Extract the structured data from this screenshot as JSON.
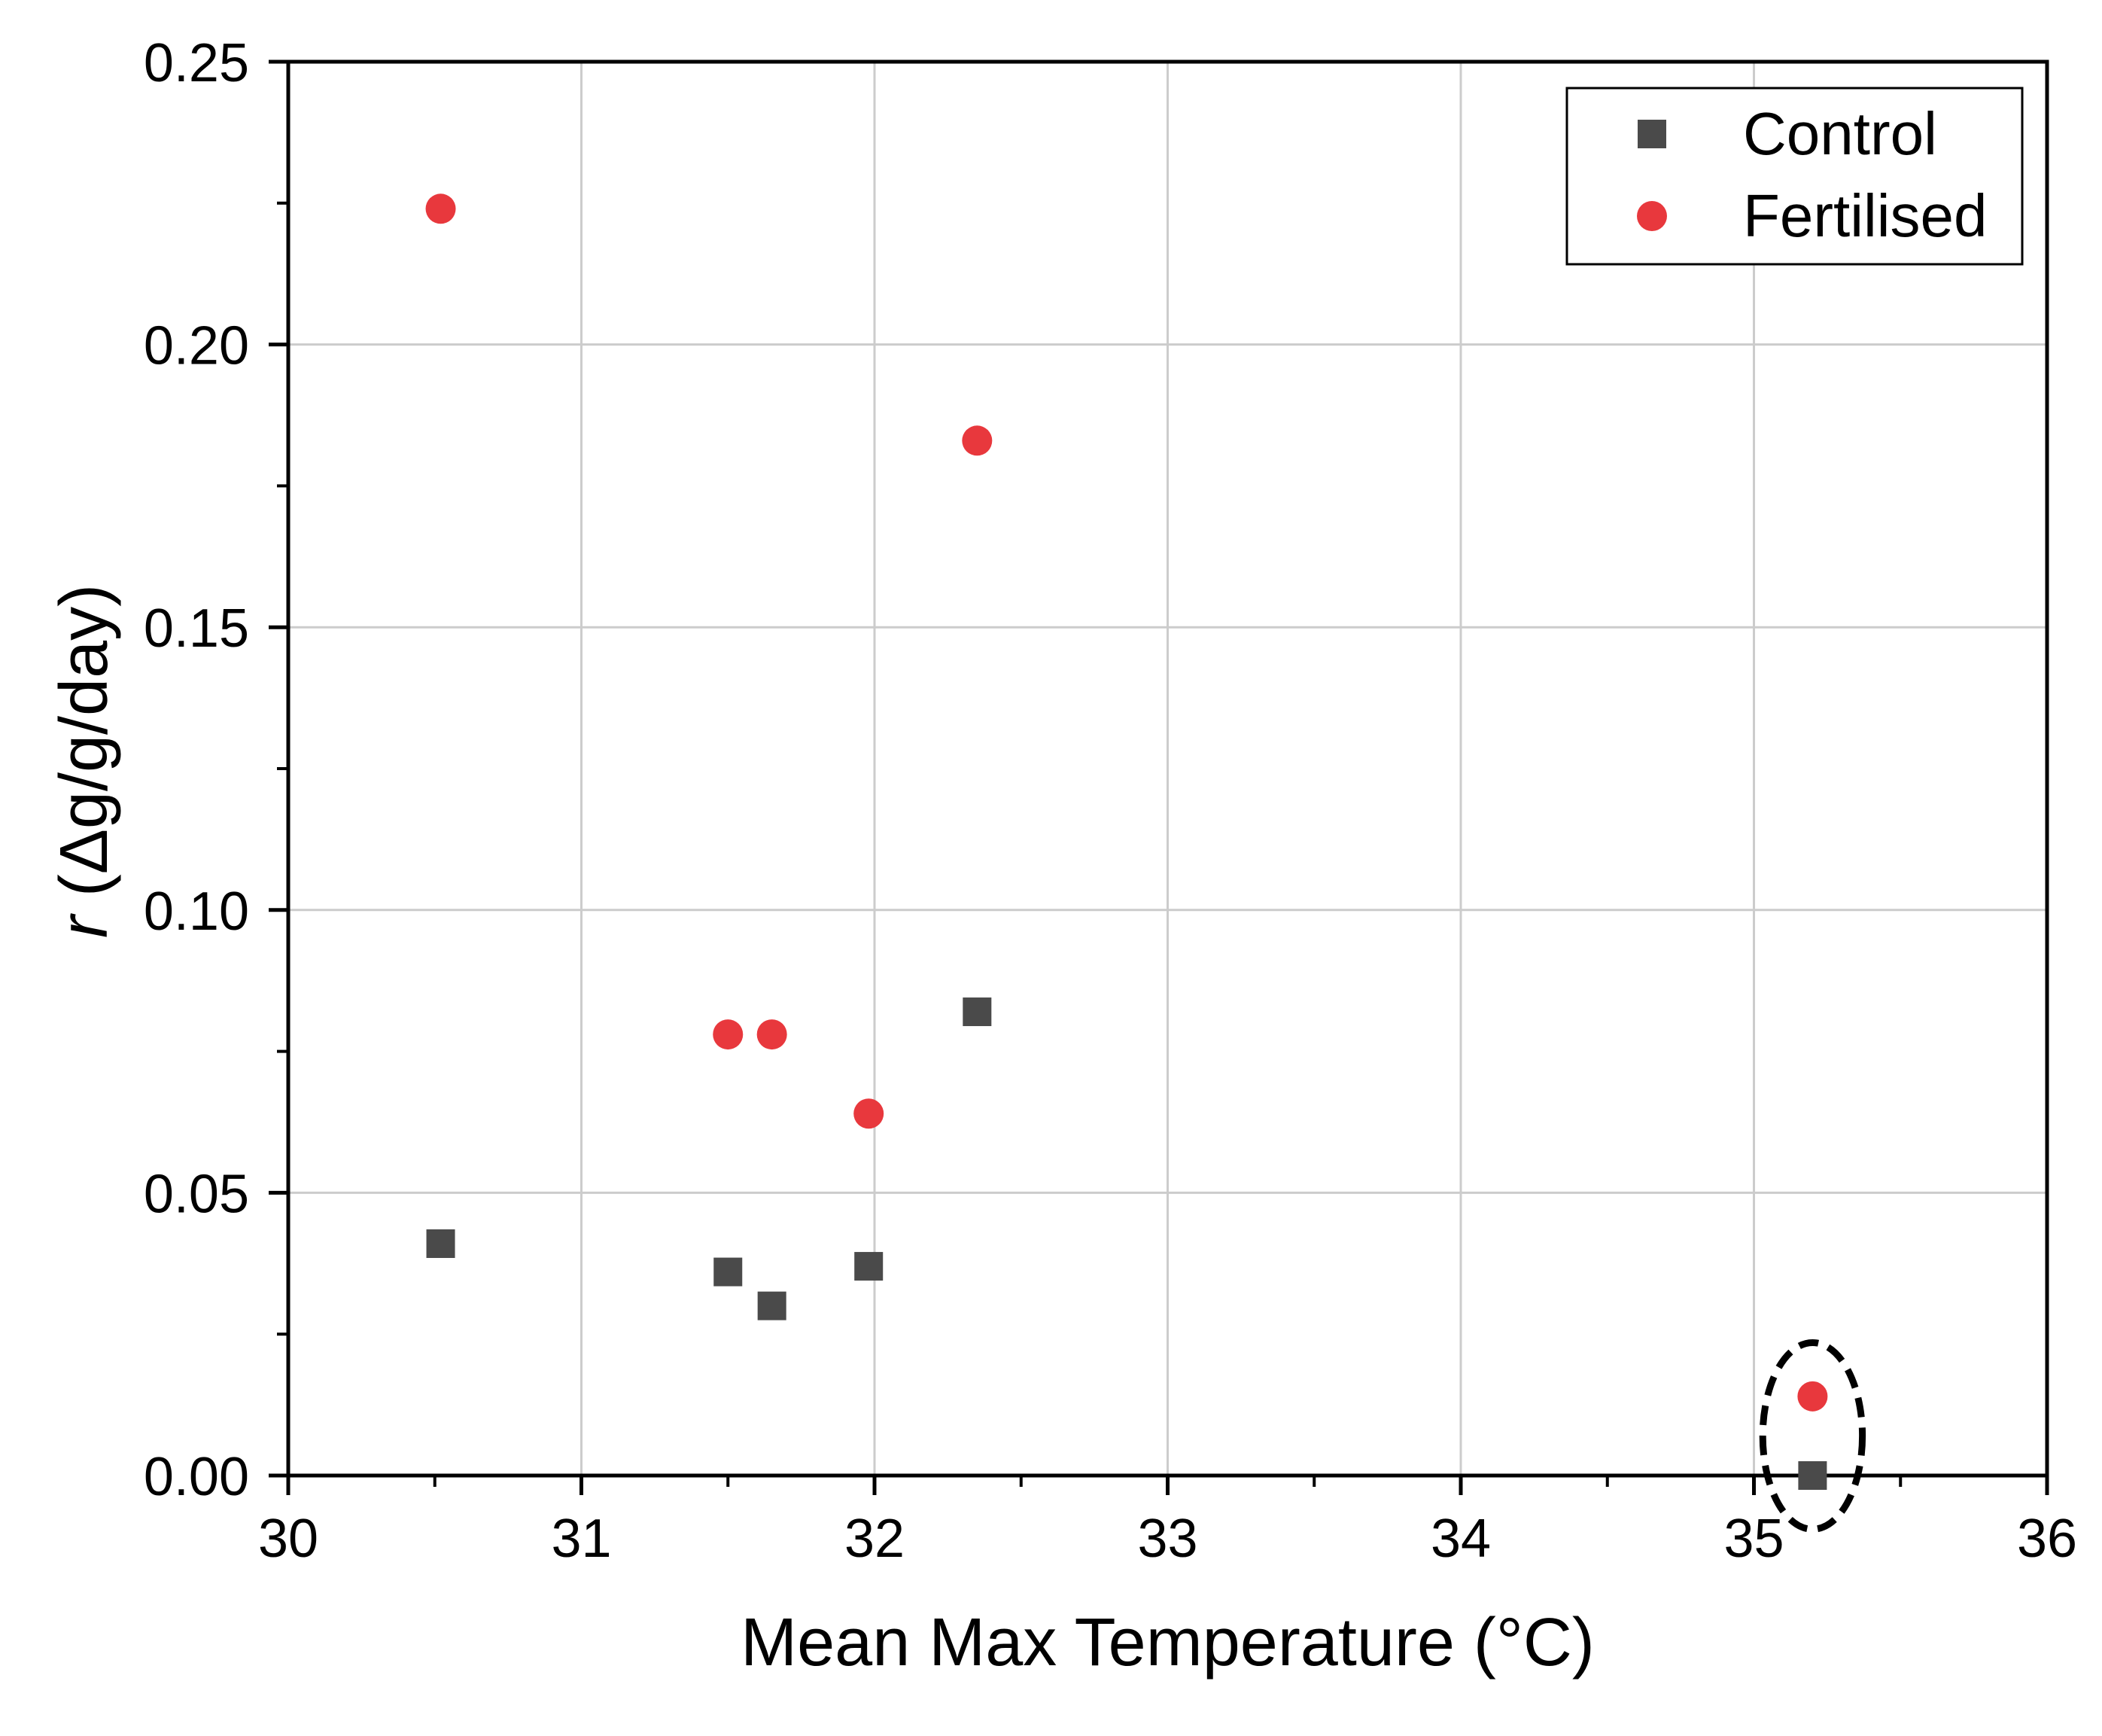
{
  "chart_data": {
    "type": "scatter",
    "title": "",
    "xlabel": "Mean Max Temperature (°C)",
    "ylabel_italic": "r",
    "ylabel_rest": " (Δg/g/day)",
    "xlim": [
      30,
      36
    ],
    "ylim": [
      0,
      0.25
    ],
    "xticks": [
      30,
      31,
      32,
      33,
      34,
      35,
      36
    ],
    "xtick_labels": [
      "30",
      "31",
      "32",
      "33",
      "34",
      "35",
      "36"
    ],
    "yticks": [
      0,
      0.05,
      0.1,
      0.15,
      0.2,
      0.25
    ],
    "ytick_labels": [
      "0.00",
      "0.05",
      "0.10",
      "0.15",
      "0.20",
      "0.25"
    ],
    "grid": true,
    "legend_position": "top-right",
    "series": [
      {
        "name": "Control",
        "marker": "square",
        "color": "#4a4a4a",
        "x": [
          30.52,
          31.5,
          31.65,
          31.98,
          32.35,
          35.2
        ],
        "y": [
          0.041,
          0.036,
          0.03,
          0.037,
          0.082,
          0.0
        ]
      },
      {
        "name": "Fertilised",
        "marker": "circle",
        "color": "#e8383d",
        "x": [
          30.52,
          31.5,
          31.65,
          31.98,
          32.35,
          35.2
        ],
        "y": [
          0.224,
          0.078,
          0.078,
          0.064,
          0.183,
          0.014
        ]
      }
    ],
    "annotations": [
      {
        "type": "dashed-ellipse",
        "x_center": 35.2,
        "y_center": 0.007,
        "x_halfwidth": 0.17,
        "y_halfheight": 0.0165
      }
    ]
  }
}
